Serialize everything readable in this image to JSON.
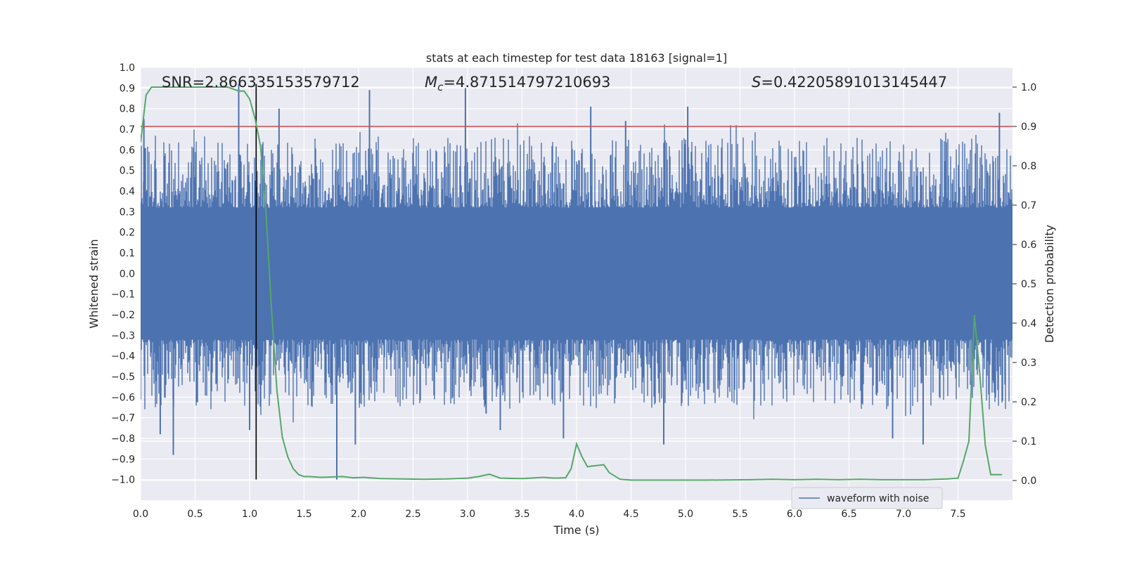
{
  "chart_data": {
    "type": "line",
    "title": "stats at each timestep for test data 18163 [signal=1]",
    "xlabel": "Time (s)",
    "ylabel": "Whitened strain",
    "y2label": "Detection probability",
    "xlim": [
      0.0,
      8.0
    ],
    "ylim": [
      -1.1,
      1.0
    ],
    "y2lim": [
      -0.05,
      1.05
    ],
    "xticks": [
      "0.0",
      "0.5",
      "1.0",
      "1.5",
      "2.0",
      "2.5",
      "3.0",
      "3.5",
      "4.0",
      "4.5",
      "5.0",
      "5.5",
      "6.0",
      "6.5",
      "7.0",
      "7.5"
    ],
    "yticks": [
      "1.0",
      "0.9",
      "0.8",
      "0.7",
      "0.6",
      "0.5",
      "0.4",
      "0.3",
      "0.2",
      "0.1",
      "0.0",
      "−0.1",
      "−0.2",
      "−0.3",
      "−0.4",
      "−0.5",
      "−0.6",
      "−0.7",
      "−0.8",
      "−0.9",
      "−1.0"
    ],
    "y2ticks": [
      "1.0",
      "0.9",
      "0.8",
      "0.7",
      "0.6",
      "0.5",
      "0.4",
      "0.3",
      "0.2",
      "0.1",
      "0.0"
    ],
    "grid": true,
    "legend": {
      "entries": [
        "waveform with noise"
      ],
      "position": "lower-right"
    },
    "annotations": {
      "snr": "SNR=2.866335153579712",
      "mc_symbol": "M",
      "mc_sub": "c",
      "mc_value": "=4.871514797210693",
      "s_symbol": "S",
      "s_value": "=0.42205891013145447"
    },
    "marker_time": 1.06,
    "threshold_probability": 0.9,
    "series": [
      {
        "name": "waveform with noise",
        "axis": "left",
        "color": "#4c72b0",
        "envelope_level": 0.32,
        "spikes": [
          {
            "t": 0.03,
            "v": 0.75
          },
          {
            "t": 0.3,
            "v": -0.88
          },
          {
            "t": 0.18,
            "v": -0.78
          },
          {
            "t": 0.9,
            "v": 0.92
          },
          {
            "t": 1.0,
            "v": -0.76
          },
          {
            "t": 1.27,
            "v": 0.8
          },
          {
            "t": 1.8,
            "v": -1.0
          },
          {
            "t": 1.97,
            "v": -0.83
          },
          {
            "t": 2.1,
            "v": 0.89
          },
          {
            "t": 2.98,
            "v": 0.9
          },
          {
            "t": 3.17,
            "v": -0.68
          },
          {
            "t": 3.3,
            "v": -0.76
          },
          {
            "t": 3.88,
            "v": -0.8
          },
          {
            "t": 4.13,
            "v": 0.81
          },
          {
            "t": 4.45,
            "v": 0.74
          },
          {
            "t": 4.8,
            "v": -0.83
          },
          {
            "t": 5.02,
            "v": 0.81
          },
          {
            "t": 6.62,
            "v": -0.63
          },
          {
            "t": 6.9,
            "v": -0.8
          },
          {
            "t": 7.18,
            "v": -0.83
          },
          {
            "t": 7.88,
            "v": 0.78
          }
        ]
      },
      {
        "name": "detection probability",
        "axis": "right",
        "color": "#55a868",
        "x": [
          0.0,
          0.05,
          0.1,
          0.2,
          0.5,
          0.8,
          0.9,
          0.95,
          1.0,
          1.05,
          1.1,
          1.15,
          1.2,
          1.25,
          1.3,
          1.35,
          1.4,
          1.45,
          1.5,
          1.55,
          1.65,
          1.75,
          1.85,
          1.95,
          2.05,
          2.2,
          2.4,
          2.6,
          2.8,
          3.0,
          3.1,
          3.2,
          3.3,
          3.5,
          3.7,
          3.8,
          3.9,
          3.95,
          4.0,
          4.05,
          4.1,
          4.15,
          4.25,
          4.3,
          4.4,
          4.5,
          4.8,
          5.2,
          5.6,
          5.8,
          6.0,
          6.2,
          6.4,
          6.6,
          6.8,
          7.0,
          7.2,
          7.3,
          7.4,
          7.5,
          7.55,
          7.6,
          7.65,
          7.7,
          7.75,
          7.8,
          7.9
        ],
        "values": [
          0.86,
          0.98,
          1.0,
          1.0,
          1.0,
          1.0,
          0.99,
          0.99,
          0.97,
          0.92,
          0.85,
          0.68,
          0.44,
          0.23,
          0.11,
          0.06,
          0.03,
          0.015,
          0.01,
          0.01,
          0.008,
          0.009,
          0.01,
          0.007,
          0.008,
          0.005,
          0.004,
          0.003,
          0.004,
          0.006,
          0.01,
          0.016,
          0.006,
          0.005,
          0.008,
          0.006,
          0.007,
          0.03,
          0.093,
          0.06,
          0.035,
          0.037,
          0.04,
          0.02,
          0.003,
          0.001,
          0.001,
          0.001,
          0.002,
          0.003,
          0.002,
          0.003,
          0.002,
          0.003,
          0.002,
          0.002,
          0.002,
          0.003,
          0.004,
          0.006,
          0.05,
          0.1,
          0.42,
          0.27,
          0.09,
          0.015,
          0.015
        ]
      },
      {
        "name": "threshold",
        "axis": "right",
        "color": "#c44e52"
      }
    ]
  }
}
